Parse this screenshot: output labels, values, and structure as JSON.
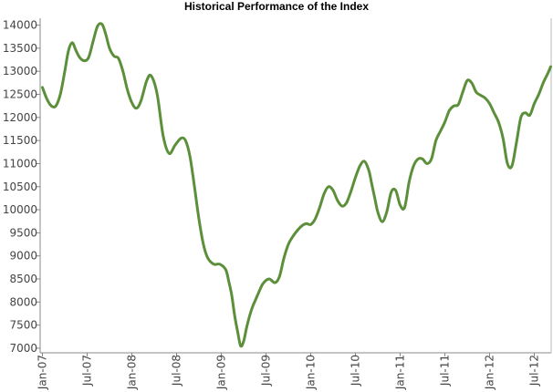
{
  "chart_data": {
    "type": "line",
    "title": "Historical Performance of the Index",
    "xlabel": "",
    "ylabel": "",
    "ylim": [
      6900,
      14150
    ],
    "yticks": [
      7000,
      7500,
      8000,
      8500,
      9000,
      9500,
      10000,
      10500,
      11000,
      11500,
      12000,
      12500,
      13000,
      13500,
      14000
    ],
    "xticks": [
      "Jan-07",
      "Jul-07",
      "Jan-08",
      "Jul-08",
      "Jan-09",
      "Jul-09",
      "Jan-10",
      "Jul-10",
      "Jan-11",
      "Jul-11",
      "Jan-12",
      "Jul-12"
    ],
    "xlim": [
      0,
      68.2
    ],
    "grid": false,
    "line_color": "#5b8f3a",
    "series": [
      {
        "x": [
          0,
          0.6,
          1.2,
          1.8,
          2.4,
          3.0,
          3.5,
          4.0,
          4.5,
          5.0,
          5.6,
          6.2,
          6.8,
          7.4,
          8.0,
          8.5,
          9.0,
          9.6,
          10.2,
          10.8,
          11.4,
          12.0,
          12.6,
          13.2,
          14.0,
          14.6,
          15.4,
          16.2,
          17.0,
          17.8,
          18.6,
          19.2,
          19.8,
          20.4,
          21.0,
          21.6,
          22.2,
          23.0,
          23.8,
          24.6,
          25.0,
          25.4,
          25.8,
          26.2,
          26.6,
          27.0,
          27.4,
          27.8,
          28.2,
          28.6,
          29.0,
          29.6,
          30.4,
          31.2,
          31.8,
          32.4,
          33.0,
          33.6,
          34.2,
          34.8,
          35.4,
          36.0,
          36.6,
          37.2,
          37.8,
          38.4,
          39.0,
          39.6,
          40.2,
          40.8,
          41.4,
          42.0,
          42.6,
          43.2,
          43.8,
          44.2,
          44.6,
          45.0,
          45.6,
          46.2,
          46.8,
          47.4,
          48.0,
          48.6,
          49.2,
          49.8,
          50.4,
          51.0,
          51.6,
          52.2,
          52.8,
          53.4,
          54.0,
          54.6,
          55.2,
          55.8,
          56.4,
          57.0,
          57.6,
          58.2,
          58.8,
          59.4,
          60.0,
          60.6,
          61.2,
          61.8,
          62.4,
          63.0,
          63.6,
          64.2,
          64.8,
          65.4,
          66.0,
          66.6,
          67.2,
          67.8,
          68.2
        ],
        "y": [
          12650,
          12400,
          12250,
          12250,
          12500,
          13000,
          13450,
          13620,
          13450,
          13300,
          13230,
          13300,
          13650,
          13980,
          14020,
          13800,
          13500,
          13330,
          13280,
          13000,
          12600,
          12320,
          12200,
          12350,
          12800,
          12900,
          12500,
          11600,
          11220,
          11400,
          11550,
          11500,
          11150,
          10500,
          9800,
          9250,
          8950,
          8820,
          8820,
          8700,
          8450,
          8150,
          7700,
          7350,
          7050,
          7150,
          7450,
          7700,
          7900,
          8050,
          8200,
          8400,
          8500,
          8420,
          8550,
          8950,
          9250,
          9420,
          9550,
          9650,
          9700,
          9680,
          9800,
          10050,
          10350,
          10500,
          10420,
          10200,
          10080,
          10150,
          10400,
          10700,
          10950,
          11050,
          10850,
          10550,
          10250,
          9950,
          9740,
          9950,
          10380,
          10420,
          10100,
          10050,
          10600,
          10950,
          11100,
          11100,
          11000,
          11100,
          11500,
          11700,
          11900,
          12150,
          12250,
          12280,
          12550,
          12800,
          12750,
          12550,
          12480,
          12420,
          12300,
          12100,
          11900,
          11550,
          11000,
          10950,
          11450,
          12000,
          12100,
          12050,
          12300,
          12500,
          12750,
          12950,
          13100
        ]
      }
    ]
  }
}
